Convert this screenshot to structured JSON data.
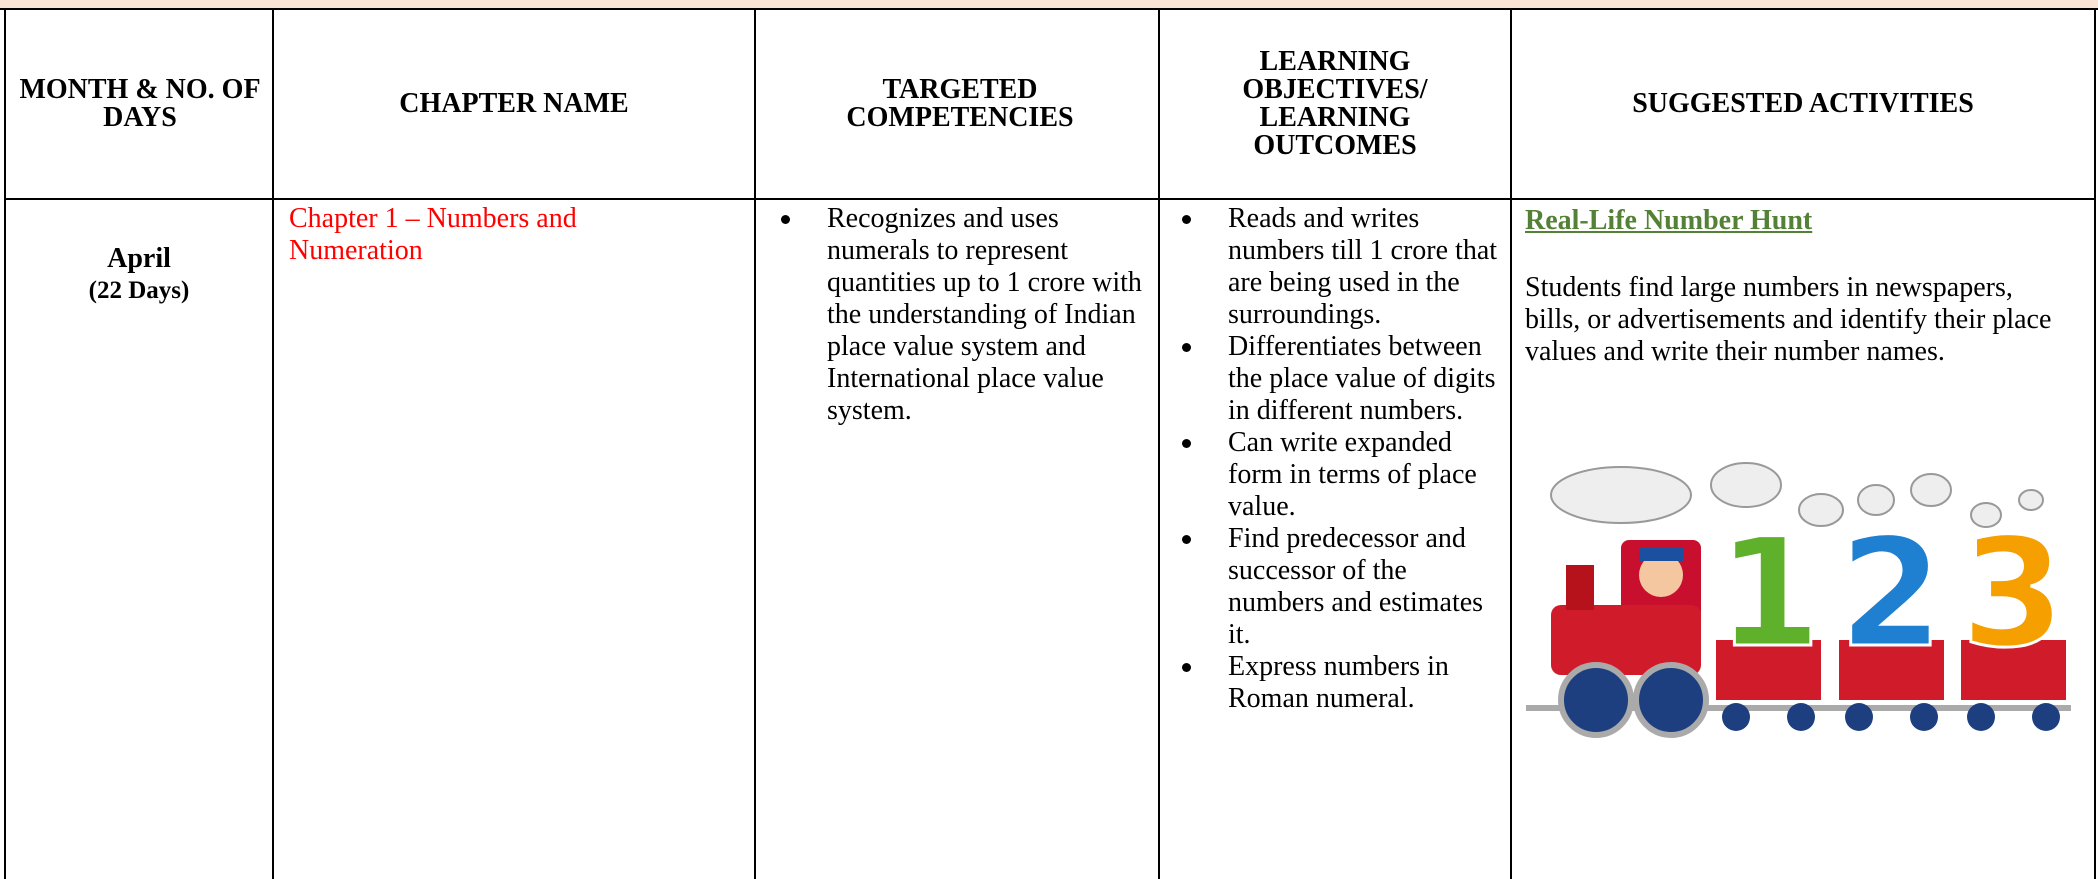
{
  "header": {
    "columns": [
      "MONTH  & NO. OF DAYS",
      "CHAPTER NAME",
      "TARGETED COMPETENCIES",
      "LEARNING OBJECTIVES/ LEARNING OUTCOMES",
      "SUGGESTED ACTIVITIES"
    ]
  },
  "row": {
    "month": "April",
    "days": "(22 Days)",
    "chapter": "Chapter 1 – Numbers and Numeration",
    "competencies": [
      "Recognizes and uses numerals to represent quantities up to 1 crore with the understanding of Indian place value system and International place value system."
    ],
    "objectives": [
      "Reads and writes numbers till 1 crore that are being used in the surroundings.",
      "Differentiates between the place value of digits in different numbers.",
      "Can write expanded form in terms of place value.",
      "Find predecessor and successor of the numbers and estimates it.",
      "Express numbers in Roman numeral."
    ],
    "activity_title": "Real-Life Number Hunt",
    "activity_text": "Students find large numbers in newspapers, bills, or advertisements and identify their place values and write their number names.",
    "illustration_digits": [
      "1",
      "2",
      "3"
    ]
  }
}
